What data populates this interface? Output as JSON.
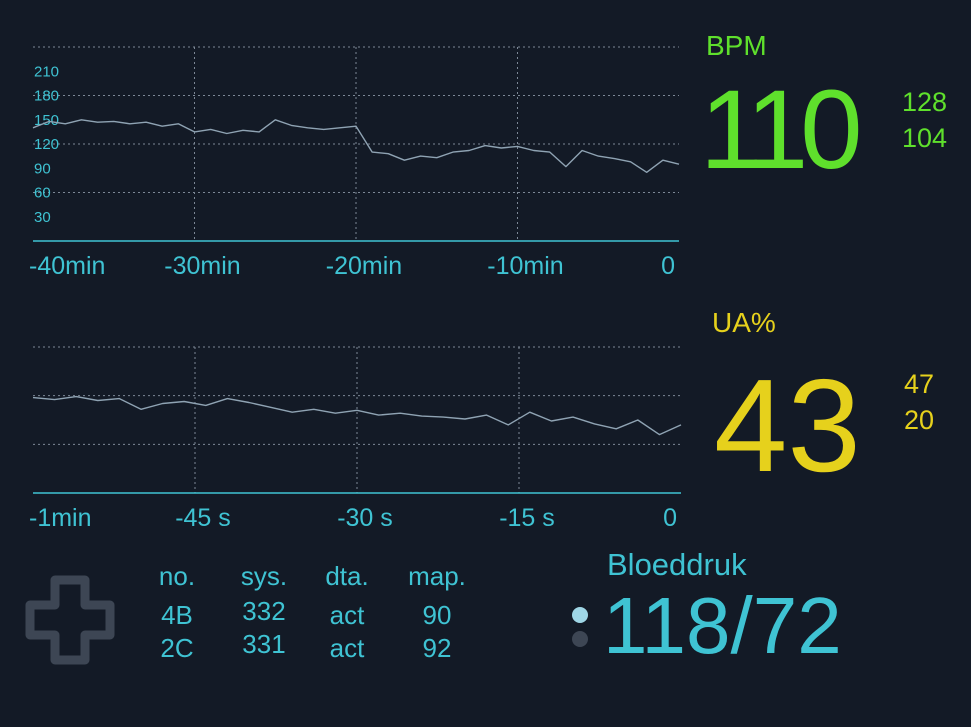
{
  "chart_data": [
    {
      "type": "line",
      "x": [
        -40,
        -39,
        -38,
        -37,
        -36,
        -35,
        -34,
        -33,
        -32,
        -31,
        -30,
        -29,
        -28,
        -27,
        -26,
        -25,
        -24,
        -23,
        -22,
        -21,
        -20,
        -19,
        -18,
        -17,
        -16,
        -15,
        -14,
        -13,
        -12,
        -11,
        -10,
        -9,
        -8,
        -7,
        -6,
        -5,
        -4,
        -3,
        -2,
        -1,
        0
      ],
      "series": [
        {
          "color": "#8fa3b3",
          "values": [
            140,
            148,
            145,
            150,
            147,
            148,
            145,
            147,
            142,
            145,
            135,
            138,
            133,
            137,
            135,
            150,
            143,
            140,
            138,
            140,
            142,
            110,
            108,
            100,
            105,
            103,
            110,
            112,
            118,
            115,
            117,
            112,
            110,
            92,
            112,
            105,
            102,
            98,
            85,
            100,
            95
          ]
        }
      ],
      "xlim": [
        -40,
        0
      ],
      "xticks": [
        {
          "value": -40,
          "label": "-40min"
        },
        {
          "value": -30,
          "label": "-30min"
        },
        {
          "value": -20,
          "label": "-20min"
        },
        {
          "value": -10,
          "label": "-10min"
        },
        0
      ],
      "ylim": [
        0,
        240
      ],
      "yticks": [
        30,
        60,
        90,
        120,
        150,
        180,
        210
      ],
      "grid": true
    },
    {
      "type": "line",
      "x": [
        -60,
        -58,
        -56,
        -54,
        -52,
        -50,
        -48,
        -46,
        -44,
        -42,
        -40,
        -38,
        -36,
        -34,
        -32,
        -30,
        -28,
        -26,
        -24,
        -22,
        -20,
        -18,
        -16,
        -14,
        -12,
        -10,
        -8,
        -6,
        -4,
        -2,
        0
      ],
      "series": [
        {
          "color": "#8fa3b3",
          "values": [
            98,
            96,
            99,
            95,
            97,
            86,
            92,
            94,
            90,
            97,
            93,
            88,
            83,
            86,
            82,
            85,
            80,
            82,
            79,
            78,
            76,
            80,
            70,
            83,
            74,
            78,
            71,
            66,
            75,
            60,
            70
          ]
        }
      ],
      "xlim": [
        -60,
        0
      ],
      "xticks": [
        {
          "value": -60,
          "label": "-1min"
        },
        {
          "value": -45,
          "label": "-45 s"
        },
        {
          "value": -30,
          "label": "-30 s"
        },
        {
          "value": -15,
          "label": "-15 s"
        },
        0
      ],
      "ylim": [
        0,
        150
      ],
      "yticks": [
        50,
        100,
        150
      ],
      "show_ytick_labels": false,
      "grid": true
    }
  ],
  "vitals": [
    {
      "label": "BPM",
      "value": 110,
      "high": 128,
      "low": 104,
      "color": "#5fe02c"
    },
    {
      "label": "UA%",
      "value": 43,
      "high": 47,
      "low": 20,
      "color": "#e6d11c"
    }
  ],
  "blood_pressure": {
    "label": "Bloeddruk",
    "value": "118/72"
  },
  "table": {
    "headers": [
      "no.",
      "sys.",
      "dta.",
      "map."
    ],
    "rows": [
      [
        "4B",
        "332",
        "act",
        "90"
      ],
      [
        "2C",
        "331",
        "act",
        "92"
      ]
    ]
  }
}
